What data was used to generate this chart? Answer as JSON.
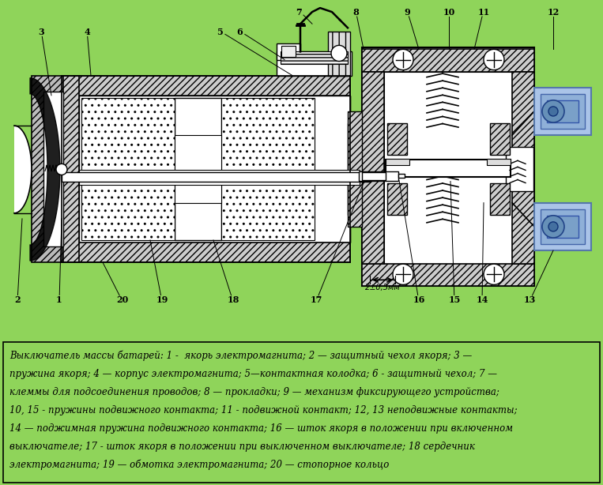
{
  "background_color": "#8fd45a",
  "text_box_color": "#c8e89a",
  "legend_text_line1": "Выключатель массы батарей: 1 -  якорь электромагнита; 2 — защитный чехол якоря; 3 —",
  "legend_text_line2": "пружина якоря; 4 — корпус электромагнита; 5—контактная колодка; 6 - защитный чехол; 7 —",
  "legend_text_line3": "клеммы для подсоединения проводов; 8 — прокладки; 9 — механизм фиксирующего устройства;",
  "legend_text_line4": "10, 15 - пружины подвижного контакта; 11 - подвижной контакт; 12, 13 неподвижные контакты;",
  "legend_text_line5": "14 — поджимная пружина подвижного контакта; 16 — шток якоря в положении при включенном",
  "legend_text_line6": "выключателе; 17 - шток якоря в положении при выключенном выключателе; 18 сердечник",
  "legend_text_line7": "электромагнита; 19 — обмотка электромагнита; 20 — стопорное кольцо",
  "figsize": [
    7.63,
    6.14
  ],
  "dpi": 100
}
